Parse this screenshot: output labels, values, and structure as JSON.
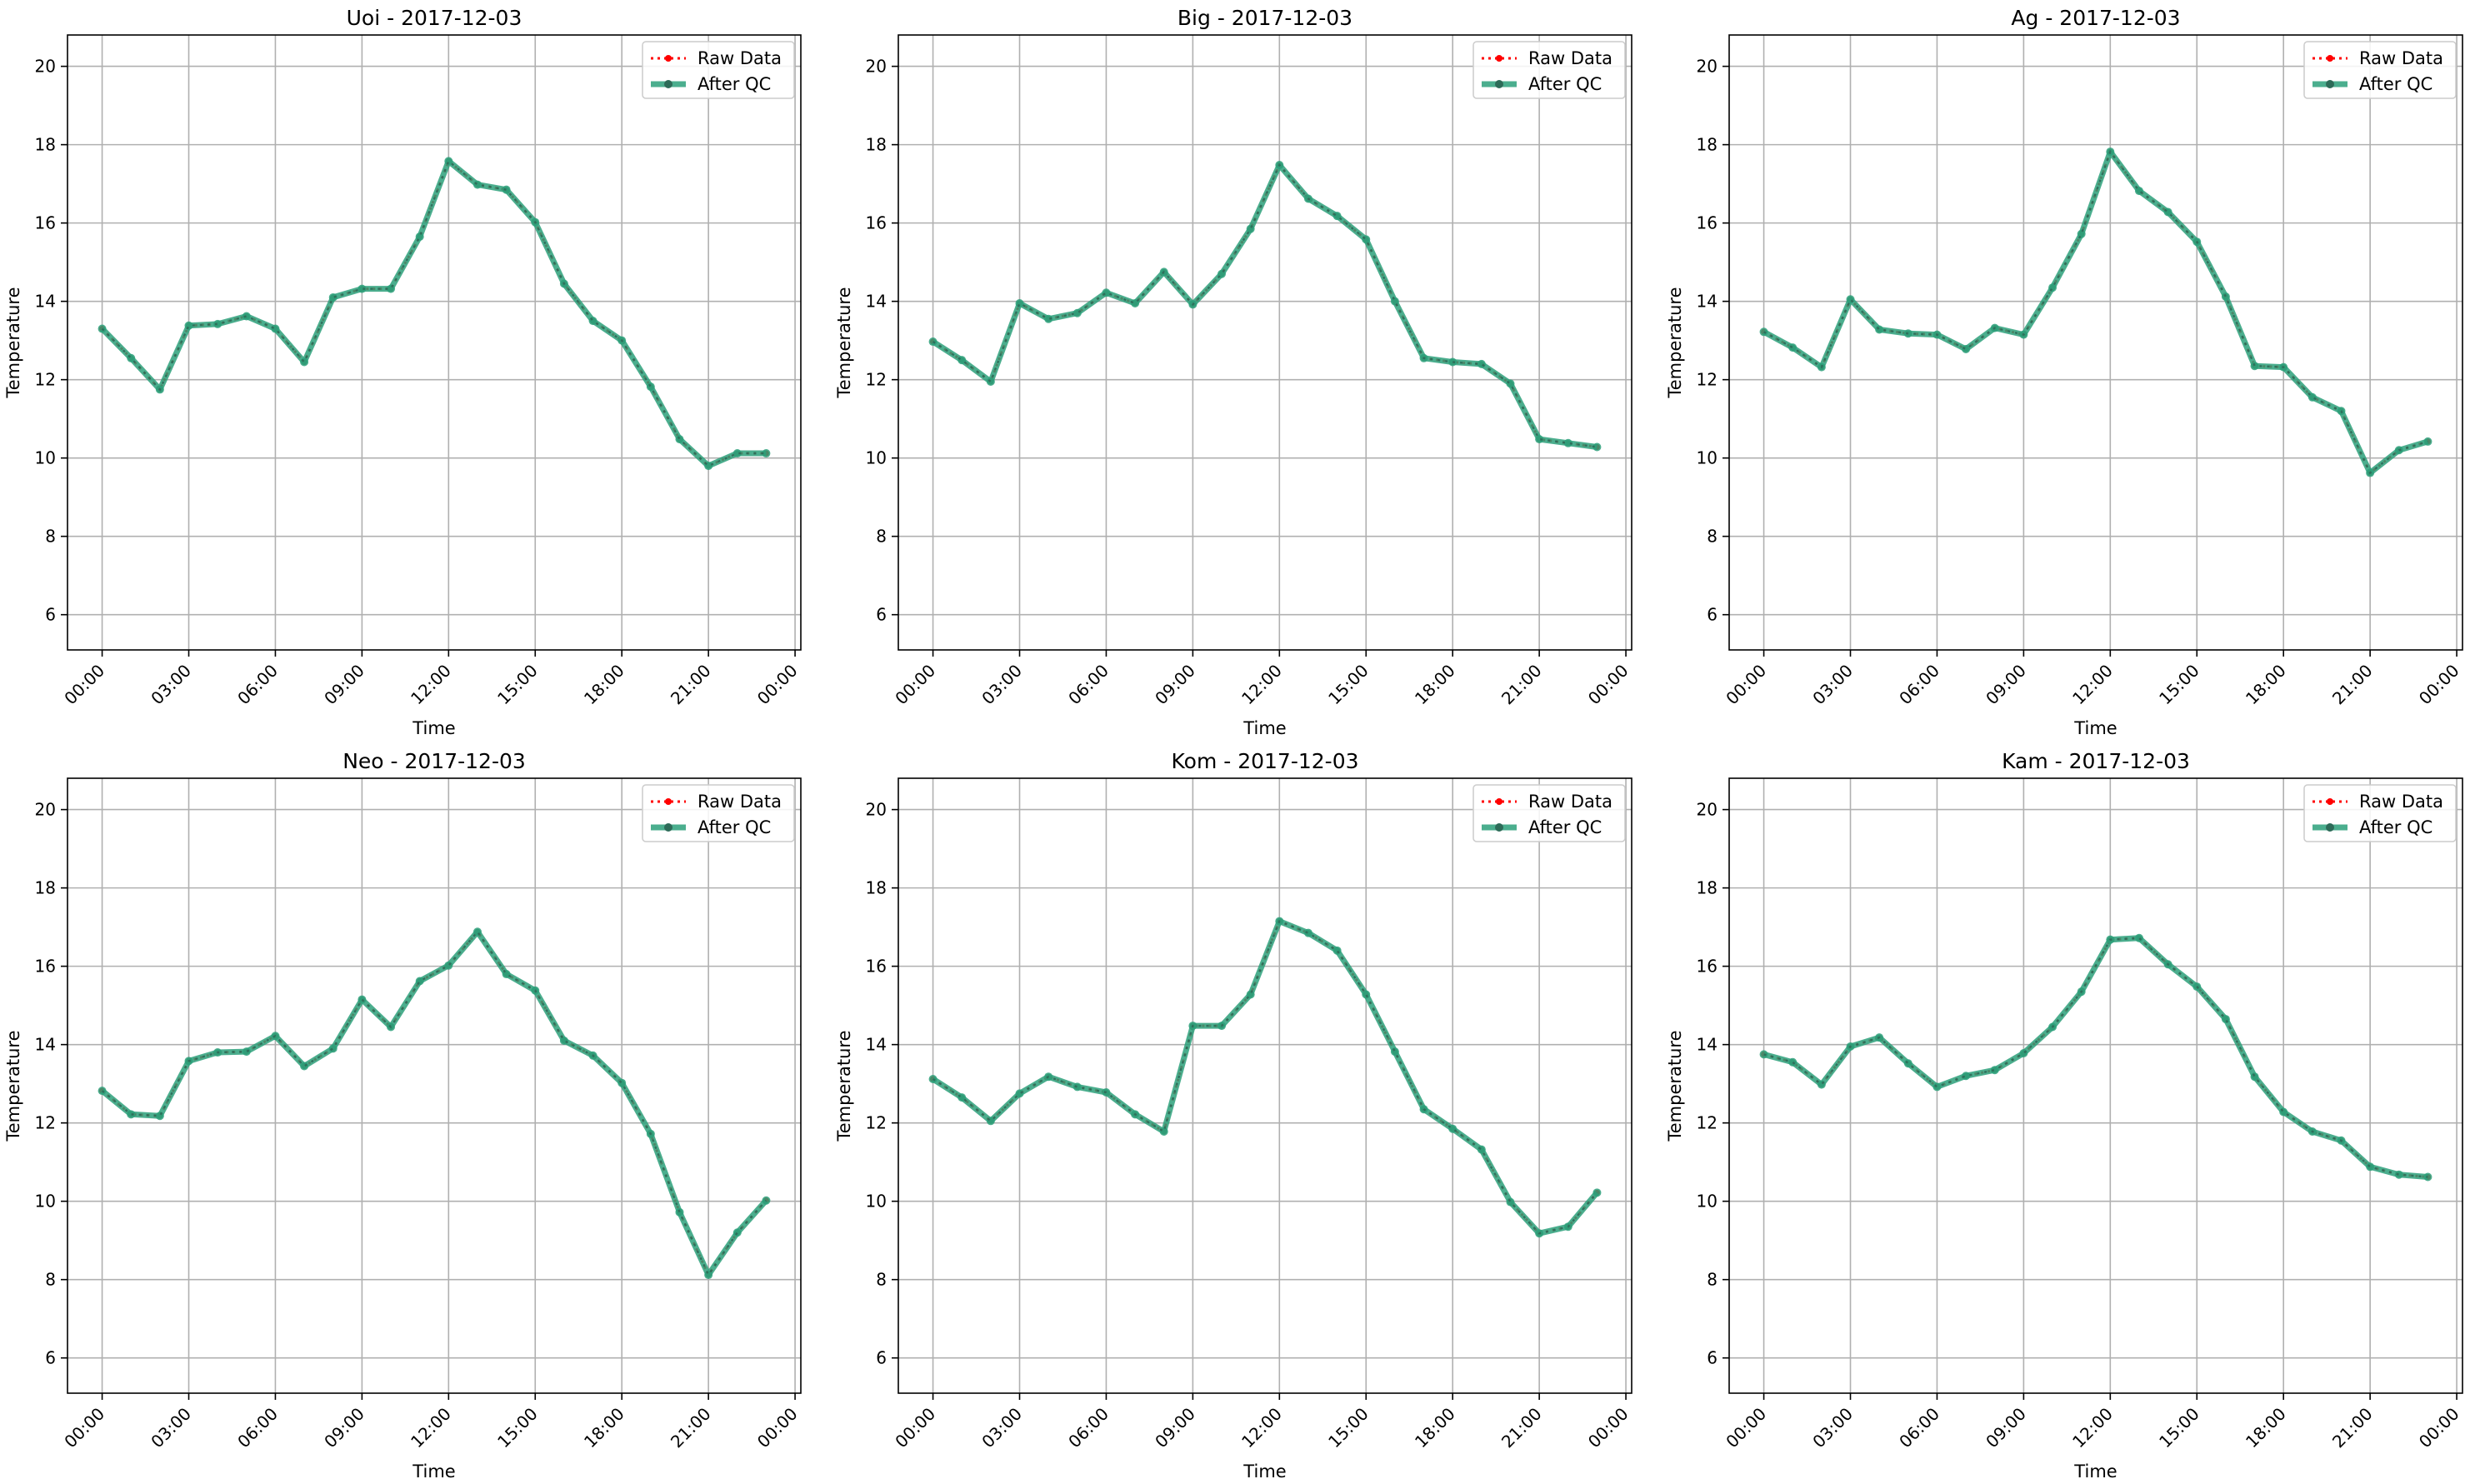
{
  "chart_data": [
    {
      "type": "line",
      "title": "Uoi - 2017-12-03",
      "xlabel": "Time",
      "ylabel": "Temperature",
      "x_unit": "hour",
      "xlim": [
        -1.2,
        24.2
      ],
      "ylim": [
        5.1,
        20.8
      ],
      "xticks": [
        0,
        3,
        6,
        9,
        12,
        15,
        18,
        21,
        24
      ],
      "xtick_labels": [
        "00:00",
        "03:00",
        "06:00",
        "09:00",
        "12:00",
        "15:00",
        "18:00",
        "21:00",
        "00:00"
      ],
      "yticks": [
        6,
        8,
        10,
        12,
        14,
        16,
        18,
        20
      ],
      "ytick_labels": [
        "6",
        "8",
        "10",
        "12",
        "14",
        "16",
        "18",
        "20"
      ],
      "grid": true,
      "legend": "upper right",
      "x": [
        0,
        1,
        2,
        3,
        4,
        5,
        6,
        7,
        8,
        9,
        10,
        11,
        12,
        13,
        14,
        15,
        16,
        17,
        18,
        19,
        20,
        21,
        22,
        23
      ],
      "series": [
        {
          "name": "Raw Data",
          "color": "#ff0000",
          "style": "dotted",
          "values": [
            13.3,
            12.55,
            11.75,
            13.38,
            13.42,
            13.62,
            13.3,
            12.45,
            14.1,
            14.32,
            14.32,
            15.65,
            17.58,
            16.98,
            16.85,
            16.02,
            14.45,
            13.5,
            13.0,
            11.82,
            10.48,
            9.8,
            10.12,
            10.12
          ]
        },
        {
          "name": "After QC",
          "color": "#2ca07a",
          "style": "solid",
          "values": [
            13.3,
            12.55,
            11.75,
            13.38,
            13.42,
            13.62,
            13.3,
            12.45,
            14.1,
            14.32,
            14.32,
            15.65,
            17.58,
            16.98,
            16.85,
            16.02,
            14.45,
            13.5,
            13.0,
            11.82,
            10.48,
            9.8,
            10.12,
            10.12
          ]
        }
      ]
    },
    {
      "type": "line",
      "title": "Big - 2017-12-03",
      "xlabel": "Time",
      "ylabel": "Temperature",
      "x_unit": "hour",
      "xlim": [
        -1.2,
        24.2
      ],
      "ylim": [
        5.1,
        20.8
      ],
      "xticks": [
        0,
        3,
        6,
        9,
        12,
        15,
        18,
        21,
        24
      ],
      "xtick_labels": [
        "00:00",
        "03:00",
        "06:00",
        "09:00",
        "12:00",
        "15:00",
        "18:00",
        "21:00",
        "00:00"
      ],
      "yticks": [
        6,
        8,
        10,
        12,
        14,
        16,
        18,
        20
      ],
      "ytick_labels": [
        "6",
        "8",
        "10",
        "12",
        "14",
        "16",
        "18",
        "20"
      ],
      "grid": true,
      "legend": "upper right",
      "x": [
        0,
        1,
        2,
        3,
        4,
        5,
        6,
        7,
        8,
        9,
        10,
        11,
        12,
        13,
        14,
        15,
        16,
        17,
        18,
        19,
        20,
        21,
        22,
        23
      ],
      "series": [
        {
          "name": "Raw Data",
          "color": "#ff0000",
          "style": "dotted",
          "values": [
            12.97,
            12.5,
            11.95,
            13.95,
            13.55,
            13.7,
            14.22,
            13.95,
            14.75,
            13.92,
            14.7,
            15.85,
            17.48,
            16.62,
            16.18,
            15.58,
            14.0,
            12.55,
            12.45,
            12.4,
            11.9,
            10.48,
            10.38,
            10.28
          ]
        },
        {
          "name": "After QC",
          "color": "#2ca07a",
          "style": "solid",
          "values": [
            12.97,
            12.5,
            11.95,
            13.95,
            13.55,
            13.7,
            14.22,
            13.95,
            14.75,
            13.92,
            14.7,
            15.85,
            17.48,
            16.62,
            16.18,
            15.58,
            14.0,
            12.55,
            12.45,
            12.4,
            11.9,
            10.48,
            10.38,
            10.28
          ]
        }
      ]
    },
    {
      "type": "line",
      "title": "Ag - 2017-12-03",
      "xlabel": "Time",
      "ylabel": "Temperature",
      "x_unit": "hour",
      "xlim": [
        -1.2,
        24.2
      ],
      "ylim": [
        5.1,
        20.8
      ],
      "xticks": [
        0,
        3,
        6,
        9,
        12,
        15,
        18,
        21,
        24
      ],
      "xtick_labels": [
        "00:00",
        "03:00",
        "06:00",
        "09:00",
        "12:00",
        "15:00",
        "18:00",
        "21:00",
        "00:00"
      ],
      "yticks": [
        6,
        8,
        10,
        12,
        14,
        16,
        18,
        20
      ],
      "ytick_labels": [
        "6",
        "8",
        "10",
        "12",
        "14",
        "16",
        "18",
        "20"
      ],
      "grid": true,
      "legend": "upper right",
      "x": [
        0,
        1,
        2,
        3,
        4,
        5,
        6,
        7,
        8,
        9,
        10,
        11,
        12,
        13,
        14,
        15,
        16,
        17,
        18,
        19,
        20,
        21,
        22,
        23
      ],
      "series": [
        {
          "name": "Raw Data",
          "color": "#ff0000",
          "style": "dotted",
          "values": [
            13.22,
            12.82,
            12.32,
            14.05,
            13.28,
            13.18,
            13.15,
            12.78,
            13.32,
            13.15,
            14.35,
            15.72,
            17.82,
            16.82,
            16.28,
            15.52,
            14.12,
            12.35,
            12.32,
            11.55,
            11.2,
            9.62,
            10.2,
            10.42
          ]
        },
        {
          "name": "After QC",
          "color": "#2ca07a",
          "style": "solid",
          "values": [
            13.22,
            12.82,
            12.32,
            14.05,
            13.28,
            13.18,
            13.15,
            12.78,
            13.32,
            13.15,
            14.35,
            15.72,
            17.82,
            16.82,
            16.28,
            15.52,
            14.12,
            12.35,
            12.32,
            11.55,
            11.2,
            9.62,
            10.2,
            10.42
          ]
        }
      ]
    },
    {
      "type": "line",
      "title": "Neo - 2017-12-03",
      "xlabel": "Time",
      "ylabel": "Temperature",
      "x_unit": "hour",
      "xlim": [
        -1.2,
        24.2
      ],
      "ylim": [
        5.1,
        20.8
      ],
      "xticks": [
        0,
        3,
        6,
        9,
        12,
        15,
        18,
        21,
        24
      ],
      "xtick_labels": [
        "00:00",
        "03:00",
        "06:00",
        "09:00",
        "12:00",
        "15:00",
        "18:00",
        "21:00",
        "00:00"
      ],
      "yticks": [
        6,
        8,
        10,
        12,
        14,
        16,
        18,
        20
      ],
      "ytick_labels": [
        "6",
        "8",
        "10",
        "12",
        "14",
        "16",
        "18",
        "20"
      ],
      "grid": true,
      "legend": "upper right",
      "x": [
        0,
        1,
        2,
        3,
        4,
        5,
        6,
        7,
        8,
        9,
        10,
        11,
        12,
        13,
        14,
        15,
        16,
        17,
        18,
        19,
        20,
        21,
        22,
        23
      ],
      "series": [
        {
          "name": "Raw Data",
          "color": "#ff0000",
          "style": "dotted",
          "values": [
            12.82,
            12.22,
            12.18,
            13.58,
            13.8,
            13.82,
            14.22,
            13.45,
            13.9,
            15.15,
            14.45,
            15.62,
            16.02,
            16.88,
            15.8,
            15.38,
            14.1,
            13.72,
            13.02,
            11.72,
            9.72,
            8.12,
            9.2,
            10.02
          ]
        },
        {
          "name": "After QC",
          "color": "#2ca07a",
          "style": "solid",
          "values": [
            12.82,
            12.22,
            12.18,
            13.58,
            13.8,
            13.82,
            14.22,
            13.45,
            13.9,
            15.15,
            14.45,
            15.62,
            16.02,
            16.88,
            15.8,
            15.38,
            14.1,
            13.72,
            13.02,
            11.72,
            9.72,
            8.12,
            9.2,
            10.02
          ]
        }
      ]
    },
    {
      "type": "line",
      "title": "Kom - 2017-12-03",
      "xlabel": "Time",
      "ylabel": "Temperature",
      "x_unit": "hour",
      "xlim": [
        -1.2,
        24.2
      ],
      "ylim": [
        5.1,
        20.8
      ],
      "xticks": [
        0,
        3,
        6,
        9,
        12,
        15,
        18,
        21,
        24
      ],
      "xtick_labels": [
        "00:00",
        "03:00",
        "06:00",
        "09:00",
        "12:00",
        "15:00",
        "18:00",
        "21:00",
        "00:00"
      ],
      "yticks": [
        6,
        8,
        10,
        12,
        14,
        16,
        18,
        20
      ],
      "ytick_labels": [
        "6",
        "8",
        "10",
        "12",
        "14",
        "16",
        "18",
        "20"
      ],
      "grid": true,
      "legend": "upper right",
      "x": [
        0,
        1,
        2,
        3,
        4,
        5,
        6,
        7,
        8,
        9,
        10,
        11,
        12,
        13,
        14,
        15,
        16,
        17,
        18,
        19,
        20,
        21,
        22,
        23
      ],
      "series": [
        {
          "name": "Raw Data",
          "color": "#ff0000",
          "style": "dotted",
          "values": [
            13.12,
            12.65,
            12.05,
            12.75,
            13.18,
            12.92,
            12.78,
            12.22,
            11.78,
            14.48,
            14.48,
            15.28,
            17.15,
            16.85,
            16.4,
            15.28,
            13.82,
            12.35,
            11.85,
            11.32,
            9.98,
            9.18,
            9.35,
            10.22
          ]
        },
        {
          "name": "After QC",
          "color": "#2ca07a",
          "style": "solid",
          "values": [
            13.12,
            12.65,
            12.05,
            12.75,
            13.18,
            12.92,
            12.78,
            12.22,
            11.78,
            14.48,
            14.48,
            15.28,
            17.15,
            16.85,
            16.4,
            15.28,
            13.82,
            12.35,
            11.85,
            11.32,
            9.98,
            9.18,
            9.35,
            10.22
          ]
        }
      ]
    },
    {
      "type": "line",
      "title": "Kam - 2017-12-03",
      "xlabel": "Time",
      "ylabel": "Temperature",
      "x_unit": "hour",
      "xlim": [
        -1.2,
        24.2
      ],
      "ylim": [
        5.1,
        20.8
      ],
      "xticks": [
        0,
        3,
        6,
        9,
        12,
        15,
        18,
        21,
        24
      ],
      "xtick_labels": [
        "00:00",
        "03:00",
        "06:00",
        "09:00",
        "12:00",
        "15:00",
        "18:00",
        "21:00",
        "00:00"
      ],
      "yticks": [
        6,
        8,
        10,
        12,
        14,
        16,
        18,
        20
      ],
      "ytick_labels": [
        "6",
        "8",
        "10",
        "12",
        "14",
        "16",
        "18",
        "20"
      ],
      "grid": true,
      "legend": "upper right",
      "x": [
        0,
        1,
        2,
        3,
        4,
        5,
        6,
        7,
        8,
        9,
        10,
        11,
        12,
        13,
        14,
        15,
        16,
        17,
        18,
        19,
        20,
        21,
        22,
        23
      ],
      "series": [
        {
          "name": "Raw Data",
          "color": "#ff0000",
          "style": "dotted",
          "values": [
            13.75,
            13.55,
            12.98,
            13.95,
            14.18,
            13.52,
            12.92,
            13.2,
            13.35,
            13.78,
            14.45,
            15.35,
            16.68,
            16.72,
            16.05,
            15.48,
            14.65,
            13.18,
            12.28,
            11.78,
            11.55,
            10.88,
            10.68,
            10.62
          ]
        },
        {
          "name": "After QC",
          "color": "#2ca07a",
          "style": "solid",
          "values": [
            13.75,
            13.55,
            12.98,
            13.95,
            14.18,
            13.52,
            12.92,
            13.2,
            13.35,
            13.78,
            14.45,
            15.35,
            16.68,
            16.72,
            16.05,
            15.48,
            14.65,
            13.18,
            12.28,
            11.78,
            11.55,
            10.88,
            10.68,
            10.62
          ]
        }
      ]
    }
  ]
}
